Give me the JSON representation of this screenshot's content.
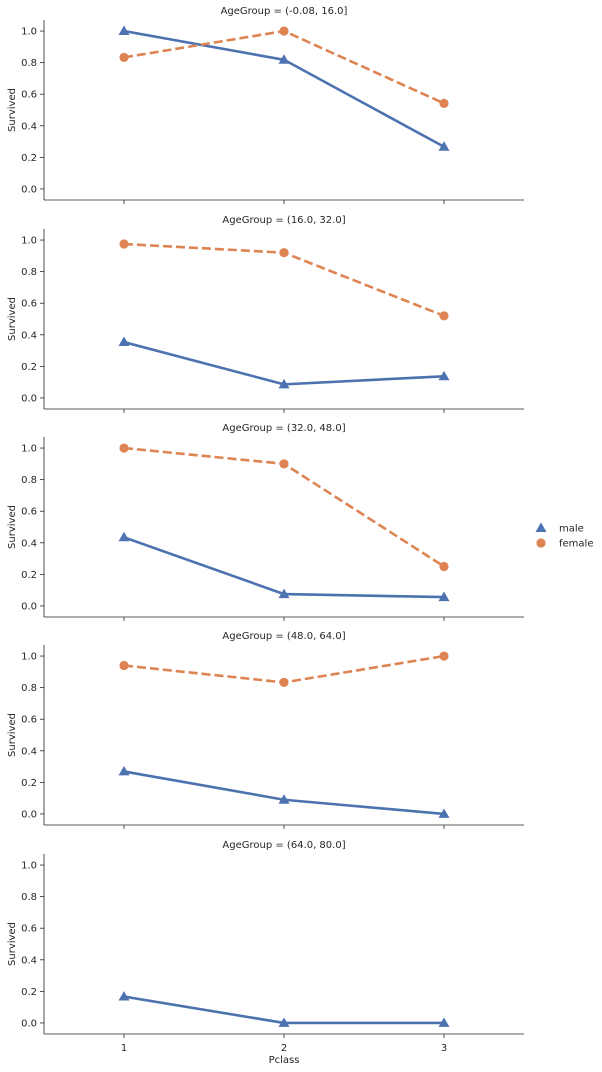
{
  "chart_data": {
    "type": "line",
    "xlabel": "Pclass",
    "ylabel": "Survived",
    "categories": [
      "1",
      "2",
      "3"
    ],
    "ylim": [
      -0.07,
      1.07
    ],
    "yticks": [
      "0.0",
      "0.2",
      "0.4",
      "0.6",
      "0.8",
      "1.0"
    ],
    "legend": {
      "placement": "right",
      "entries": [
        {
          "name": "male",
          "color": "#4c72b0",
          "marker": "triangle",
          "line": "solid"
        },
        {
          "name": "female",
          "color": "#dd8452",
          "marker": "circle",
          "line": "dashed"
        }
      ]
    },
    "panels": [
      {
        "title": "AgeGroup = (-0.08, 16.0]",
        "series": [
          {
            "name": "male",
            "values": [
              1.0,
              0.818,
              0.267
            ]
          },
          {
            "name": "female",
            "values": [
              0.833,
              1.0,
              0.542
            ]
          }
        ]
      },
      {
        "title": "AgeGroup = (16.0, 32.0]",
        "series": [
          {
            "name": "male",
            "values": [
              0.354,
              0.086,
              0.137
            ]
          },
          {
            "name": "female",
            "values": [
              0.975,
              0.92,
              0.52
            ]
          }
        ]
      },
      {
        "title": "AgeGroup = (32.0, 48.0]",
        "series": [
          {
            "name": "male",
            "values": [
              0.435,
              0.075,
              0.056
            ]
          },
          {
            "name": "female",
            "values": [
              1.0,
              0.9,
              0.25
            ]
          }
        ]
      },
      {
        "title": "AgeGroup = (48.0, 64.0]",
        "series": [
          {
            "name": "male",
            "values": [
              0.269,
              0.09,
              0.0
            ]
          },
          {
            "name": "female",
            "values": [
              0.94,
              0.833,
              1.0
            ]
          }
        ]
      },
      {
        "title": "AgeGroup = (64.0, 80.0]",
        "series": [
          {
            "name": "male",
            "values": [
              0.167,
              0.0,
              0.0
            ]
          }
        ]
      }
    ]
  }
}
